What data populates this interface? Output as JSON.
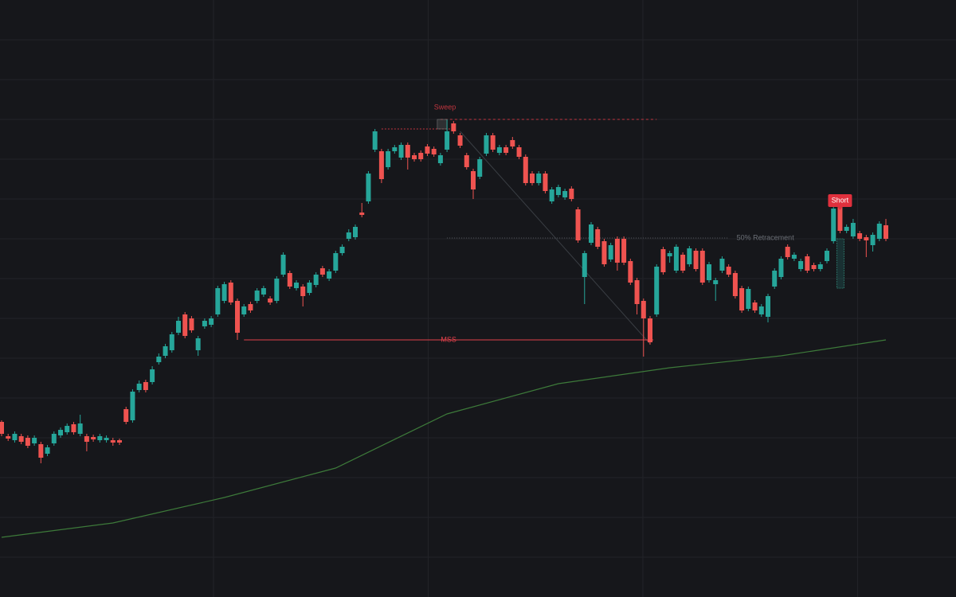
{
  "chart_data": {
    "type": "candlestick",
    "ylim": [
      0,
      750
    ],
    "grid": true,
    "up_color": "#26a69a",
    "down_color": "#ef5350",
    "candles": [
      [
        220,
        222,
        202,
        205
      ],
      [
        202,
        205,
        196,
        199
      ],
      [
        197,
        208,
        194,
        205
      ],
      [
        202,
        205,
        192,
        195
      ],
      [
        200,
        203,
        187,
        190
      ],
      [
        193,
        203,
        190,
        200
      ],
      [
        192,
        195,
        168,
        175
      ],
      [
        180,
        191,
        177,
        188
      ],
      [
        193,
        208,
        190,
        205
      ],
      [
        203,
        213,
        200,
        210
      ],
      [
        207,
        218,
        204,
        215
      ],
      [
        217,
        220,
        204,
        207
      ],
      [
        205,
        229,
        202,
        218
      ],
      [
        202,
        205,
        183,
        195
      ],
      [
        201,
        204,
        195,
        198
      ],
      [
        197,
        205,
        194,
        202
      ],
      [
        197,
        203,
        194,
        200
      ],
      [
        197,
        200,
        190,
        194
      ],
      [
        197,
        199,
        191,
        194
      ],
      [
        236,
        239,
        217,
        220
      ],
      [
        222,
        261,
        219,
        258
      ],
      [
        260,
        272,
        257,
        268
      ],
      [
        270,
        273,
        257,
        260
      ],
      [
        270,
        290,
        267,
        286
      ],
      [
        295,
        306,
        292,
        302
      ],
      [
        303,
        318,
        300,
        315
      ],
      [
        310,
        333,
        307,
        330
      ],
      [
        332,
        352,
        329,
        347
      ],
      [
        355,
        358,
        325,
        328
      ],
      [
        350,
        353,
        332,
        335
      ],
      [
        310,
        328,
        303,
        325
      ],
      [
        340,
        350,
        337,
        347
      ],
      [
        342,
        353,
        339,
        350
      ],
      [
        355,
        391,
        352,
        388
      ],
      [
        372,
        396,
        369,
        393
      ],
      [
        395,
        398,
        367,
        370
      ],
      [
        372,
        375,
        323,
        332
      ],
      [
        355,
        368,
        352,
        365
      ],
      [
        368,
        371,
        357,
        360
      ],
      [
        372,
        388,
        369,
        385
      ],
      [
        380,
        391,
        377,
        388
      ],
      [
        375,
        378,
        367,
        370
      ],
      [
        372,
        403,
        369,
        400
      ],
      [
        405,
        433,
        402,
        430
      ],
      [
        407,
        410,
        387,
        390
      ],
      [
        388,
        398,
        385,
        395
      ],
      [
        390,
        393,
        365,
        378
      ],
      [
        382,
        398,
        379,
        395
      ],
      [
        392,
        408,
        389,
        405
      ],
      [
        413,
        416,
        402,
        405
      ],
      [
        400,
        412,
        397,
        409
      ],
      [
        410,
        435,
        407,
        432
      ],
      [
        432,
        443,
        429,
        440
      ],
      [
        450,
        462,
        447,
        458
      ],
      [
        452,
        468,
        449,
        465
      ],
      [
        483,
        495,
        477,
        480
      ],
      [
        497,
        535,
        494,
        532
      ],
      [
        562,
        588,
        559,
        585
      ],
      [
        560,
        563,
        520,
        525
      ],
      [
        540,
        563,
        537,
        560
      ],
      [
        560,
        568,
        557,
        565
      ],
      [
        552,
        571,
        549,
        568
      ],
      [
        568,
        571,
        537,
        552
      ],
      [
        555,
        558,
        547,
        550
      ],
      [
        558,
        561,
        547,
        550
      ],
      [
        566,
        569,
        554,
        557
      ],
      [
        563,
        566,
        553,
        556
      ],
      [
        545,
        558,
        542,
        555
      ],
      [
        562,
        600,
        559,
        585
      ],
      [
        595,
        598,
        582,
        585
      ],
      [
        580,
        583,
        564,
        567
      ],
      [
        555,
        558,
        537,
        540
      ],
      [
        535,
        538,
        500,
        512
      ],
      [
        528,
        553,
        525,
        550
      ],
      [
        557,
        583,
        554,
        580
      ],
      [
        580,
        583,
        559,
        562
      ],
      [
        558,
        568,
        555,
        565
      ],
      [
        565,
        568,
        555,
        558
      ],
      [
        574,
        578,
        563,
        566
      ],
      [
        565,
        568,
        550,
        553
      ],
      [
        553,
        556,
        517,
        520
      ],
      [
        532,
        535,
        517,
        520
      ],
      [
        520,
        535,
        517,
        532
      ],
      [
        532,
        535,
        507,
        510
      ],
      [
        497,
        515,
        494,
        512
      ],
      [
        505,
        518,
        502,
        515
      ],
      [
        502,
        513,
        499,
        510
      ],
      [
        513,
        516,
        497,
        500
      ],
      [
        487,
        490,
        445,
        448
      ],
      [
        402,
        435,
        368,
        432
      ],
      [
        445,
        471,
        442,
        468
      ],
      [
        462,
        465,
        437,
        440
      ],
      [
        447,
        450,
        415,
        418
      ],
      [
        424,
        445,
        421,
        442
      ],
      [
        450,
        453,
        410,
        420
      ],
      [
        450,
        453,
        417,
        420
      ],
      [
        422,
        425,
        392,
        395
      ],
      [
        398,
        401,
        355,
        368
      ],
      [
        372,
        375,
        302,
        350
      ],
      [
        350,
        353,
        317,
        320
      ],
      [
        355,
        418,
        352,
        415
      ],
      [
        437,
        440,
        405,
        408
      ],
      [
        428,
        435,
        420,
        432
      ],
      [
        410,
        443,
        407,
        440
      ],
      [
        430,
        433,
        407,
        410
      ],
      [
        418,
        441,
        415,
        438
      ],
      [
        435,
        438,
        409,
        412
      ],
      [
        435,
        438,
        392,
        395
      ],
      [
        398,
        421,
        395,
        418
      ],
      [
        393,
        401,
        372,
        398
      ],
      [
        410,
        428,
        407,
        425
      ],
      [
        415,
        418,
        402,
        405
      ],
      [
        407,
        410,
        375,
        378
      ],
      [
        388,
        391,
        357,
        360
      ],
      [
        362,
        390,
        359,
        387
      ],
      [
        370,
        373,
        357,
        360
      ],
      [
        355,
        368,
        352,
        365
      ],
      [
        352,
        381,
        345,
        378
      ],
      [
        390,
        413,
        387,
        410
      ],
      [
        402,
        428,
        399,
        425
      ],
      [
        440,
        443,
        424,
        427
      ],
      [
        425,
        433,
        422,
        430
      ],
      [
        412,
        425,
        409,
        422
      ],
      [
        428,
        431,
        407,
        410
      ],
      [
        417,
        420,
        409,
        412
      ],
      [
        412,
        421,
        409,
        418
      ],
      [
        422,
        438,
        419,
        435
      ],
      [
        447,
        491,
        444,
        488
      ],
      [
        492,
        495,
        457,
        460
      ],
      [
        460,
        468,
        457,
        465
      ],
      [
        453,
        475,
        450,
        470
      ],
      [
        457,
        460,
        447,
        450
      ],
      [
        452,
        455,
        427,
        448
      ],
      [
        442,
        458,
        434,
        455
      ],
      [
        450,
        472,
        447,
        469
      ],
      [
        467,
        475,
        447,
        450
      ]
    ],
    "ma": {
      "color": "#3d7a3a",
      "index": [
        0,
        17,
        34,
        51,
        68,
        85,
        102,
        119,
        135
      ],
      "values": [
        75,
        93,
        125,
        162,
        230,
        268,
        288,
        303,
        323
      ]
    },
    "levels": [
      {
        "label": "Sweep",
        "value": 600,
        "from": 67,
        "to": 100,
        "color": "#c0353f",
        "style": "dashed"
      },
      {
        "label": "50% Retracement",
        "value": 451,
        "from": 68,
        "to": 111,
        "color": "#555a60",
        "style": "dotted"
      },
      {
        "label": "MSS",
        "value": 323,
        "from": 37,
        "to": 99.5,
        "color": "#e0404a",
        "style": "solid"
      }
    ],
    "high_line": {
      "value": 588,
      "from": 58,
      "to": 69,
      "color": "#c0353f"
    },
    "trendline": {
      "from": [
        70,
        585
      ],
      "to": [
        99,
        318
      ],
      "color": "#3a3e44"
    },
    "signal": {
      "label": "Short",
      "index": 128,
      "value": 498,
      "zone": [
        388,
        450
      ],
      "color": "#e0303d"
    }
  }
}
